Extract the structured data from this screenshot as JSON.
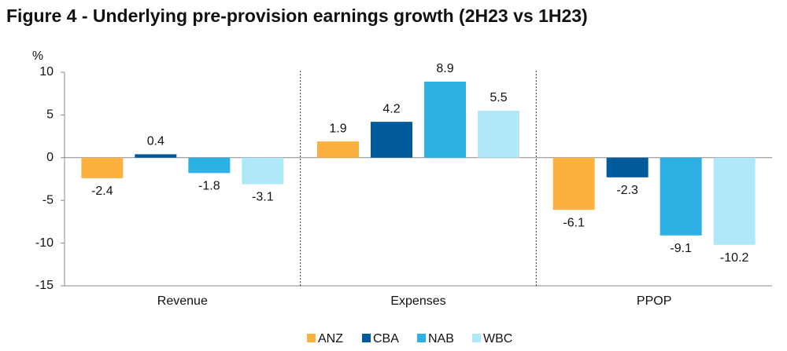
{
  "chart_data": {
    "type": "bar",
    "title": "Figure 4 - Underlying pre-provision earnings growth (2H23 vs 1H23)",
    "y_label": "%",
    "categories": [
      "Revenue",
      "Expenses",
      "PPOP"
    ],
    "series": [
      {
        "name": "ANZ",
        "color": "#fbb040",
        "values": [
          -2.4,
          1.9,
          -6.1
        ]
      },
      {
        "name": "CBA",
        "color": "#005a9c",
        "values": [
          0.4,
          4.2,
          -2.3
        ]
      },
      {
        "name": "NAB",
        "color": "#2eb0e4",
        "values": [
          -1.8,
          8.9,
          -9.1
        ]
      },
      {
        "name": "WBC",
        "color": "#aee8f9",
        "values": [
          -3.1,
          5.5,
          -10.2
        ]
      }
    ],
    "ylim": [
      -15,
      10
    ],
    "yticks": [
      -15,
      -10,
      -5,
      0,
      5,
      10
    ]
  }
}
